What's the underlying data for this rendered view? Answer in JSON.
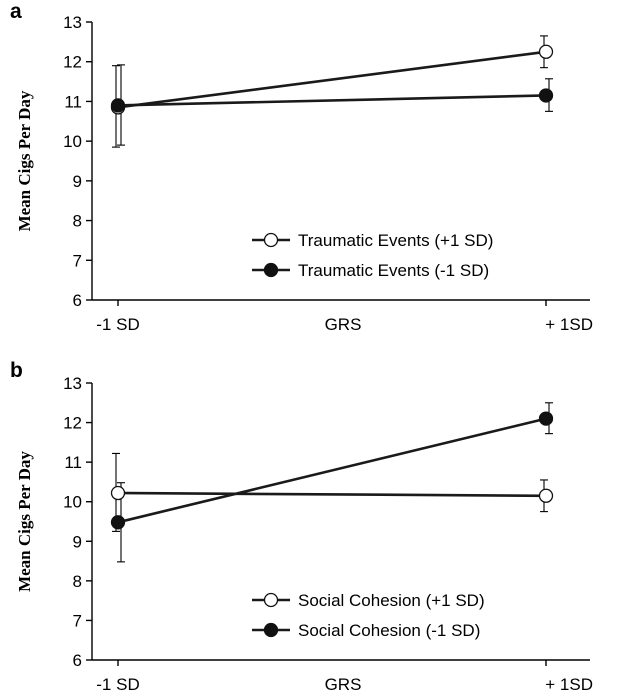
{
  "chart_data": [
    {
      "type": "line",
      "panel_label": "a",
      "ylabel": "Mean Cigs Per Day",
      "xlabel": "GRS",
      "x_ticks": [
        "-1 SD",
        "+ 1SD"
      ],
      "ylim": [
        6,
        13
      ],
      "yticks": [
        "6",
        "7",
        "8",
        "9",
        "10",
        "11",
        "12",
        "13"
      ],
      "legend_position": "bottom-right",
      "series": [
        {
          "name": "Traumatic Events (+1 SD)",
          "marker": "open-circle",
          "values": [
            10.85,
            12.25
          ],
          "err_low": [
            9.85,
            11.85
          ],
          "err_high": [
            11.9,
            12.65
          ]
        },
        {
          "name": "Traumatic Events (-1 SD)",
          "marker": "filled-circle",
          "values": [
            10.9,
            11.15
          ],
          "err_low": [
            9.9,
            10.75
          ],
          "err_high": [
            11.92,
            11.57
          ]
        }
      ]
    },
    {
      "type": "line",
      "panel_label": "b",
      "ylabel": "Mean Cigs Per Day",
      "xlabel": "GRS",
      "x_ticks": [
        "-1 SD",
        "+ 1SD"
      ],
      "ylim": [
        6,
        13
      ],
      "yticks": [
        "6",
        "7",
        "8",
        "9",
        "10",
        "11",
        "12",
        "13"
      ],
      "legend_position": "bottom-right",
      "series": [
        {
          "name": "Social Cohesion (+1 SD)",
          "marker": "open-circle",
          "values": [
            10.22,
            10.15
          ],
          "err_low": [
            9.25,
            9.75
          ],
          "err_high": [
            11.22,
            10.55
          ]
        },
        {
          "name": "Social Cohesion (-1 SD)",
          "marker": "filled-circle",
          "values": [
            9.48,
            12.1
          ],
          "err_low": [
            8.48,
            11.72
          ],
          "err_high": [
            10.48,
            12.5
          ]
        }
      ]
    }
  ]
}
